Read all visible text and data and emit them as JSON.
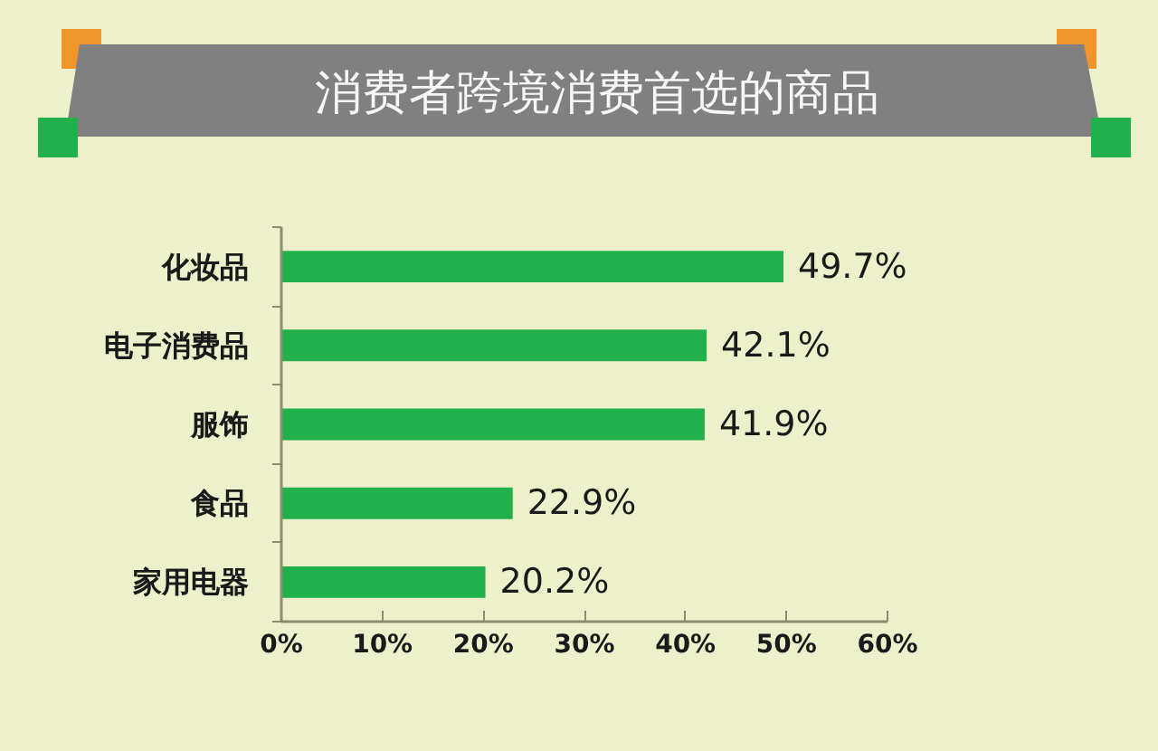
{
  "chart_data": {
    "type": "bar",
    "orientation": "horizontal",
    "title": "消费者跨境消费首选的商品",
    "categories": [
      "化妆品",
      "电子消费品",
      "服饰",
      "食品",
      "家用电器"
    ],
    "values": [
      49.7,
      42.1,
      41.9,
      22.9,
      20.2
    ],
    "color": "#22b04b",
    "value_labels": [
      "49.7%",
      "42.1%",
      "41.9%",
      "22.9%",
      "20.2%"
    ],
    "xlim": [
      0,
      60
    ],
    "xticks": [
      {
        "value": 0,
        "label": "0%"
      },
      {
        "value": 10,
        "label": "10%"
      },
      {
        "value": 20,
        "label": "20%"
      },
      {
        "value": 30,
        "label": "30%"
      },
      {
        "value": 40,
        "label": "40%"
      },
      {
        "value": 50,
        "label": "50%"
      },
      {
        "value": 60,
        "label": "60%"
      }
    ]
  }
}
